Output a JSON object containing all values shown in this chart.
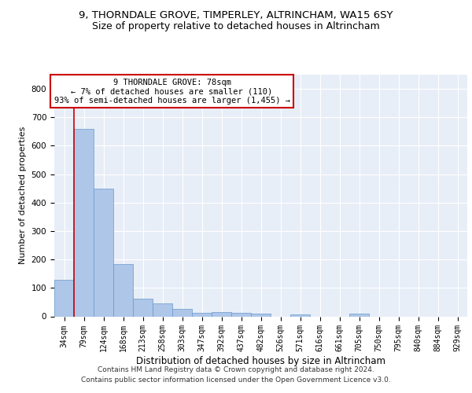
{
  "title1": "9, THORNDALE GROVE, TIMPERLEY, ALTRINCHAM, WA15 6SY",
  "title2": "Size of property relative to detached houses in Altrincham",
  "xlabel": "Distribution of detached houses by size in Altrincham",
  "ylabel": "Number of detached properties",
  "footer1": "Contains HM Land Registry data © Crown copyright and database right 2024.",
  "footer2": "Contains public sector information licensed under the Open Government Licence v3.0.",
  "categories": [
    "34sqm",
    "79sqm",
    "124sqm",
    "168sqm",
    "213sqm",
    "258sqm",
    "303sqm",
    "347sqm",
    "392sqm",
    "437sqm",
    "482sqm",
    "526sqm",
    "571sqm",
    "616sqm",
    "661sqm",
    "705sqm",
    "750sqm",
    "795sqm",
    "840sqm",
    "884sqm",
    "929sqm"
  ],
  "values": [
    128,
    660,
    450,
    183,
    62,
    45,
    27,
    12,
    14,
    12,
    10,
    0,
    8,
    0,
    0,
    9,
    0,
    0,
    0,
    0,
    0
  ],
  "bar_color": "#aec6e8",
  "bar_edge_color": "#6699cc",
  "red_line_x": 0.5,
  "annotation_line1": "9 THORNDALE GROVE: 78sqm",
  "annotation_line2": "← 7% of detached houses are smaller (110)",
  "annotation_line3": "93% of semi-detached houses are larger (1,455) →",
  "annotation_box_color": "#ffffff",
  "annotation_box_edge": "#cc0000",
  "ylim": [
    0,
    850
  ],
  "yticks": [
    0,
    100,
    200,
    300,
    400,
    500,
    600,
    700,
    800
  ],
  "bg_color": "#e8eef7",
  "grid_color": "#ffffff",
  "title1_fontsize": 9.5,
  "title2_fontsize": 9,
  "xlabel_fontsize": 8.5,
  "ylabel_fontsize": 8,
  "annotation_fontsize": 7.5,
  "footer_fontsize": 6.5,
  "tick_fontsize": 7
}
